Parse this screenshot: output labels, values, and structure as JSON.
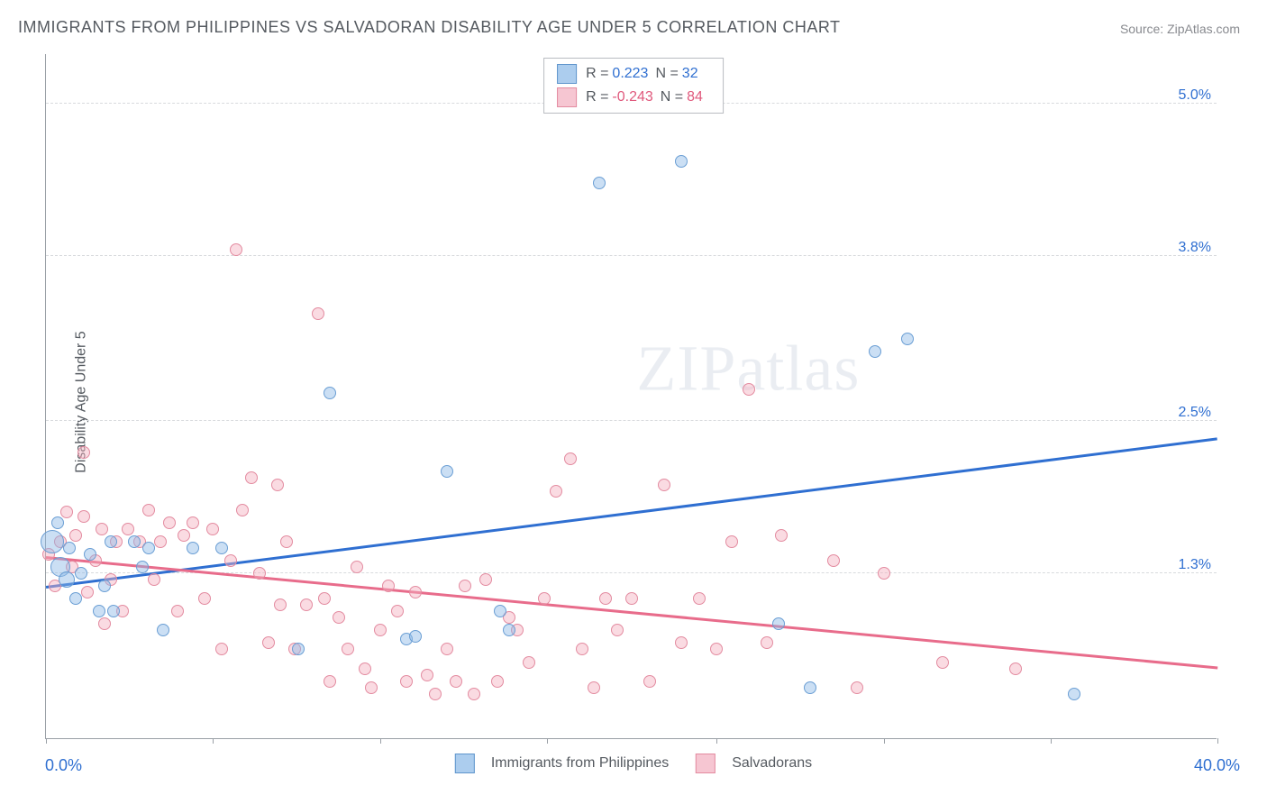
{
  "title": "IMMIGRANTS FROM PHILIPPINES VS SALVADORAN DISABILITY AGE UNDER 5 CORRELATION CHART",
  "source_prefix": "Source: ",
  "source_name": "ZipAtlas.com",
  "ylabel": "Disability Age Under 5",
  "watermark_a": "ZIP",
  "watermark_b": "atlas",
  "legend_top": {
    "series1": {
      "R_label": "R =",
      "R": "0.223",
      "N_label": "N =",
      "N": "32"
    },
    "series2": {
      "R_label": "R =",
      "R": "-0.243",
      "N_label": "N =",
      "N": "84"
    }
  },
  "legend_bottom": {
    "s1": "Immigrants from Philippines",
    "s2": "Salvadorans"
  },
  "chart": {
    "type": "scatter",
    "xlim": [
      0,
      40
    ],
    "ylim": [
      0,
      5.4
    ],
    "x_tick_positions": [
      0,
      5.7,
      11.4,
      17.1,
      22.9,
      28.6,
      34.3,
      40
    ],
    "x_min_label": "0.0%",
    "x_max_label": "40.0%",
    "y_ticks": [
      {
        "v": 5.0,
        "label": "5.0%"
      },
      {
        "v": 3.8,
        "label": "3.8%"
      },
      {
        "v": 2.5,
        "label": "2.5%"
      },
      {
        "v": 1.3,
        "label": "1.3%"
      }
    ],
    "background_color": "#ffffff",
    "grid_color": "#d8dadd",
    "axis_color": "#9aa0a6",
    "label_color": "#2f6fd1",
    "marker_default_size": 14,
    "series_blue": {
      "color_fill": "rgba(140,185,230,0.45)",
      "color_stroke": "#6a9ed4",
      "trend": {
        "x1": 0,
        "y1": 1.18,
        "x2": 40,
        "y2": 2.35,
        "color": "#2f6fd1",
        "width": 2.5
      },
      "points": [
        {
          "x": 0.2,
          "y": 1.55,
          "r": 26
        },
        {
          "x": 0.5,
          "y": 1.35,
          "r": 22
        },
        {
          "x": 0.7,
          "y": 1.25,
          "r": 18
        },
        {
          "x": 0.4,
          "y": 1.7
        },
        {
          "x": 0.8,
          "y": 1.5
        },
        {
          "x": 1.2,
          "y": 1.3
        },
        {
          "x": 1.0,
          "y": 1.1
        },
        {
          "x": 1.5,
          "y": 1.45
        },
        {
          "x": 1.8,
          "y": 1.0
        },
        {
          "x": 2.0,
          "y": 1.2
        },
        {
          "x": 2.3,
          "y": 1.0
        },
        {
          "x": 2.2,
          "y": 1.55
        },
        {
          "x": 3.0,
          "y": 1.55
        },
        {
          "x": 3.3,
          "y": 1.35
        },
        {
          "x": 3.5,
          "y": 1.5
        },
        {
          "x": 4.0,
          "y": 0.85
        },
        {
          "x": 5.0,
          "y": 1.5
        },
        {
          "x": 6.0,
          "y": 1.5
        },
        {
          "x": 8.6,
          "y": 0.7
        },
        {
          "x": 9.7,
          "y": 2.72
        },
        {
          "x": 12.3,
          "y": 0.78
        },
        {
          "x": 12.6,
          "y": 0.8
        },
        {
          "x": 13.7,
          "y": 2.1
        },
        {
          "x": 15.5,
          "y": 1.0
        },
        {
          "x": 15.8,
          "y": 0.85
        },
        {
          "x": 18.9,
          "y": 4.38
        },
        {
          "x": 21.7,
          "y": 4.55
        },
        {
          "x": 25.0,
          "y": 0.9
        },
        {
          "x": 26.1,
          "y": 0.4
        },
        {
          "x": 28.3,
          "y": 3.05
        },
        {
          "x": 29.4,
          "y": 3.15
        },
        {
          "x": 35.1,
          "y": 0.35
        }
      ]
    },
    "series_pink": {
      "color_fill": "rgba(245,175,190,0.45)",
      "color_stroke": "#e38ba0",
      "trend": {
        "x1": 0,
        "y1": 1.42,
        "x2": 40,
        "y2": 0.55,
        "color": "#e86c8b",
        "width": 2.5
      },
      "points": [
        {
          "x": 0.1,
          "y": 1.45
        },
        {
          "x": 0.3,
          "y": 1.2
        },
        {
          "x": 0.5,
          "y": 1.55
        },
        {
          "x": 0.7,
          "y": 1.78
        },
        {
          "x": 0.9,
          "y": 1.35
        },
        {
          "x": 1.0,
          "y": 1.6
        },
        {
          "x": 1.3,
          "y": 1.75
        },
        {
          "x": 1.4,
          "y": 1.15
        },
        {
          "x": 1.3,
          "y": 2.25
        },
        {
          "x": 1.7,
          "y": 1.4
        },
        {
          "x": 1.9,
          "y": 1.65
        },
        {
          "x": 2.0,
          "y": 0.9
        },
        {
          "x": 2.2,
          "y": 1.25
        },
        {
          "x": 2.4,
          "y": 1.55
        },
        {
          "x": 2.6,
          "y": 1.0
        },
        {
          "x": 2.8,
          "y": 1.65
        },
        {
          "x": 3.2,
          "y": 1.55
        },
        {
          "x": 3.5,
          "y": 1.8
        },
        {
          "x": 3.7,
          "y": 1.25
        },
        {
          "x": 3.9,
          "y": 1.55
        },
        {
          "x": 4.2,
          "y": 1.7
        },
        {
          "x": 4.5,
          "y": 1.0
        },
        {
          "x": 4.7,
          "y": 1.6
        },
        {
          "x": 5.0,
          "y": 1.7
        },
        {
          "x": 5.4,
          "y": 1.1
        },
        {
          "x": 5.7,
          "y": 1.65
        },
        {
          "x": 6.0,
          "y": 0.7
        },
        {
          "x": 6.3,
          "y": 1.4
        },
        {
          "x": 6.5,
          "y": 3.85
        },
        {
          "x": 6.7,
          "y": 1.8
        },
        {
          "x": 7.0,
          "y": 2.05
        },
        {
          "x": 7.3,
          "y": 1.3
        },
        {
          "x": 7.6,
          "y": 0.75
        },
        {
          "x": 7.9,
          "y": 2.0
        },
        {
          "x": 8.0,
          "y": 1.05
        },
        {
          "x": 8.2,
          "y": 1.55
        },
        {
          "x": 8.5,
          "y": 0.7
        },
        {
          "x": 8.9,
          "y": 1.05
        },
        {
          "x": 9.3,
          "y": 3.35
        },
        {
          "x": 9.5,
          "y": 1.1
        },
        {
          "x": 9.7,
          "y": 0.45
        },
        {
          "x": 10.0,
          "y": 0.95
        },
        {
          "x": 10.3,
          "y": 0.7
        },
        {
          "x": 10.6,
          "y": 1.35
        },
        {
          "x": 10.9,
          "y": 0.55
        },
        {
          "x": 11.1,
          "y": 0.4
        },
        {
          "x": 11.4,
          "y": 0.85
        },
        {
          "x": 11.7,
          "y": 1.2
        },
        {
          "x": 12.0,
          "y": 1.0
        },
        {
          "x": 12.3,
          "y": 0.45
        },
        {
          "x": 12.6,
          "y": 1.15
        },
        {
          "x": 13.0,
          "y": 0.5
        },
        {
          "x": 13.3,
          "y": 0.35
        },
        {
          "x": 13.7,
          "y": 0.7
        },
        {
          "x": 14.0,
          "y": 0.45
        },
        {
          "x": 14.3,
          "y": 1.2
        },
        {
          "x": 14.6,
          "y": 0.35
        },
        {
          "x": 15.0,
          "y": 1.25
        },
        {
          "x": 15.4,
          "y": 0.45
        },
        {
          "x": 15.8,
          "y": 0.95
        },
        {
          "x": 16.1,
          "y": 0.85
        },
        {
          "x": 16.5,
          "y": 0.6
        },
        {
          "x": 17.0,
          "y": 1.1
        },
        {
          "x": 17.4,
          "y": 1.95
        },
        {
          "x": 17.9,
          "y": 2.2
        },
        {
          "x": 18.3,
          "y": 0.7
        },
        {
          "x": 18.7,
          "y": 0.4
        },
        {
          "x": 19.1,
          "y": 1.1
        },
        {
          "x": 19.5,
          "y": 0.85
        },
        {
          "x": 20.0,
          "y": 1.1
        },
        {
          "x": 20.6,
          "y": 0.45
        },
        {
          "x": 21.1,
          "y": 2.0
        },
        {
          "x": 21.7,
          "y": 0.75
        },
        {
          "x": 22.3,
          "y": 1.1
        },
        {
          "x": 22.9,
          "y": 0.7
        },
        {
          "x": 23.4,
          "y": 1.55
        },
        {
          "x": 24.0,
          "y": 2.75
        },
        {
          "x": 24.6,
          "y": 0.75
        },
        {
          "x": 25.1,
          "y": 1.6
        },
        {
          "x": 26.9,
          "y": 1.4
        },
        {
          "x": 27.7,
          "y": 0.4
        },
        {
          "x": 28.6,
          "y": 1.3
        },
        {
          "x": 30.6,
          "y": 0.6
        },
        {
          "x": 33.1,
          "y": 0.55
        }
      ]
    }
  }
}
